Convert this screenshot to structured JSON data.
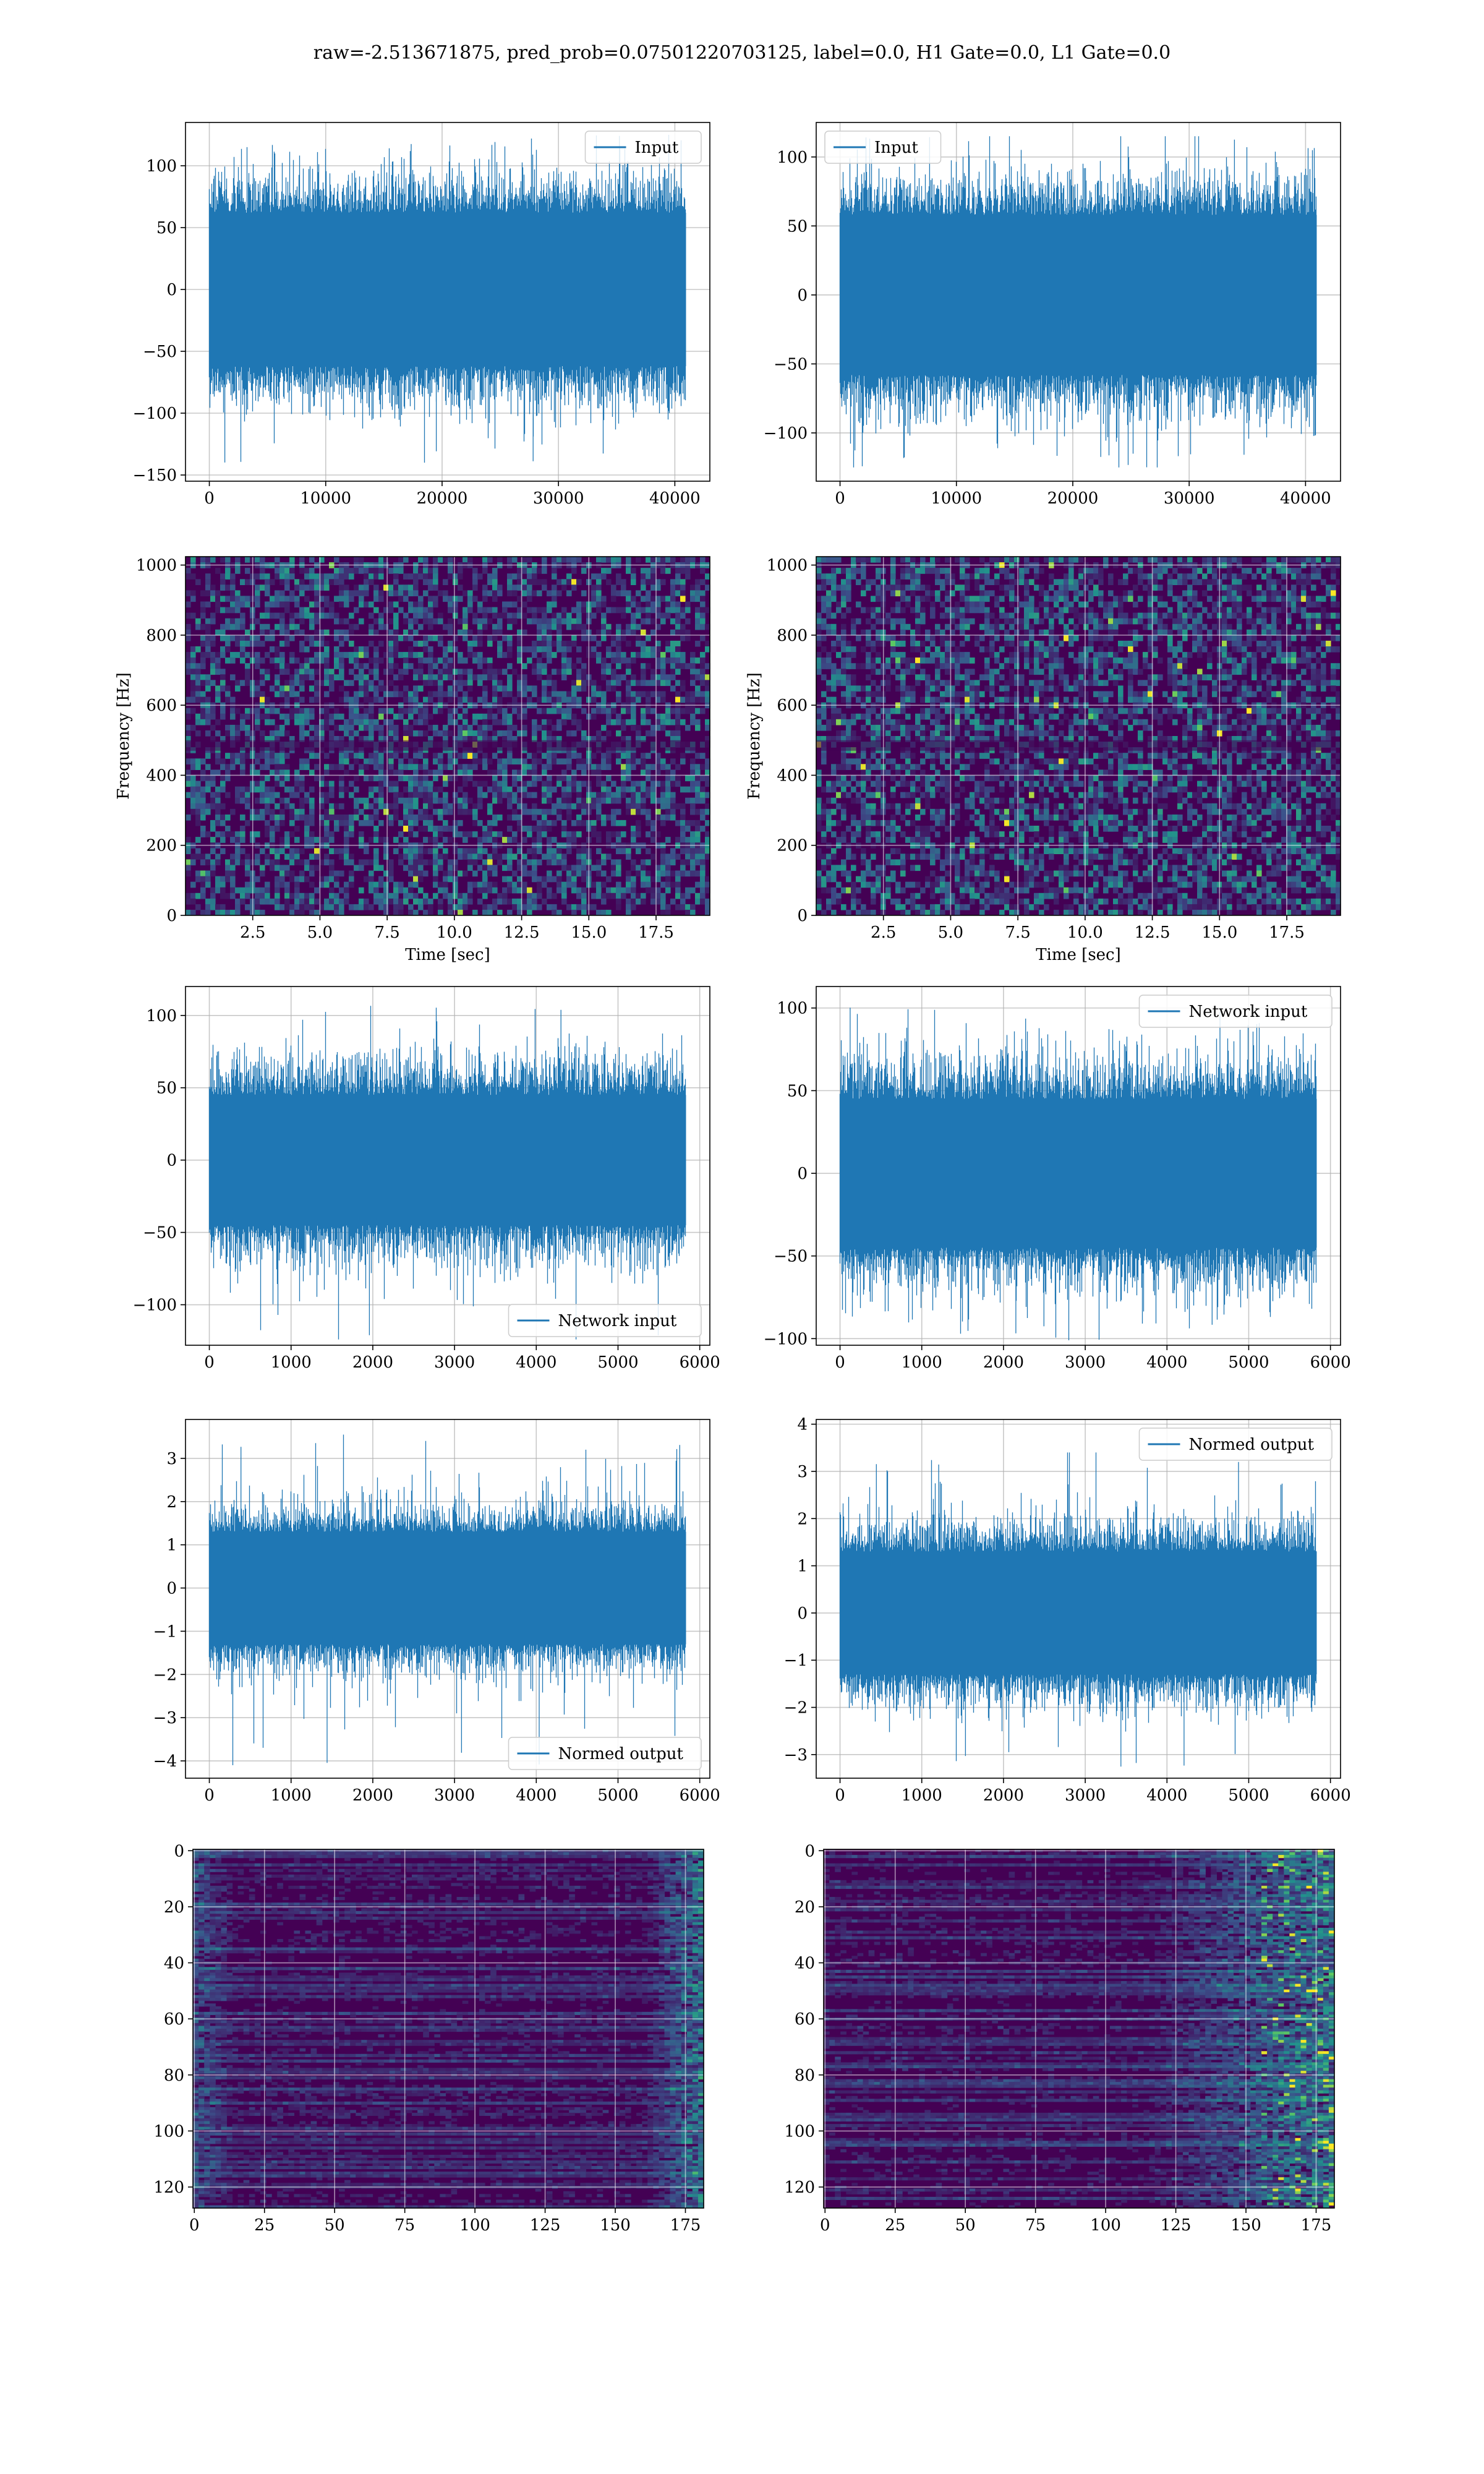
{
  "figure": {
    "title": "raw=-2.513671875, pred_prob=0.07501220703125, label=0.0, H1 Gate=0.0, L1 Gate=0.0"
  },
  "colors": {
    "line": "#1f77b4",
    "grid": "#b0b0b0",
    "viridis_dark": "#440154",
    "viridis_mid": "#21918c",
    "viridis_bright": "#fde725"
  },
  "chart_data": [
    {
      "id": "h1-input",
      "type": "line",
      "panel": "row1-left",
      "series": [
        {
          "name": "Input",
          "values_pattern": "dense gaussian noise, core amplitude ~60, peaks ~125, min ~-140",
          "n": 40960
        }
      ],
      "xlim": [
        -2048,
        43008
      ],
      "ylim": [
        -155,
        135
      ],
      "xticks": [
        0,
        10000,
        20000,
        30000,
        40000
      ],
      "yticks": [
        -150,
        -100,
        -50,
        0,
        50,
        100
      ],
      "legend": "top-right",
      "grid": true,
      "xlabel": "",
      "ylabel": ""
    },
    {
      "id": "l1-input",
      "type": "line",
      "panel": "row1-right",
      "series": [
        {
          "name": "Input",
          "values_pattern": "dense gaussian noise, core amplitude ~55, peaks ~115, min ~-125",
          "n": 40960
        }
      ],
      "xlim": [
        -2048,
        43008
      ],
      "ylim": [
        -135,
        125
      ],
      "xticks": [
        0,
        10000,
        20000,
        30000,
        40000
      ],
      "yticks": [
        -100,
        -50,
        0,
        50,
        100
      ],
      "legend": "top-left",
      "grid": true,
      "xlabel": "",
      "ylabel": ""
    },
    {
      "id": "h1-spectrogram",
      "type": "heatmap",
      "panel": "row2-left",
      "xlim": [
        0,
        19.5
      ],
      "ylim": [
        0,
        1024
      ],
      "xticks": [
        2.5,
        5.0,
        7.5,
        10.0,
        12.5,
        15.0,
        17.5
      ],
      "yticks": [
        0,
        200,
        400,
        600,
        800,
        1000
      ],
      "xlabel": "Time [sec]",
      "ylabel": "Frequency [Hz]",
      "colormap": "viridis",
      "grid": true,
      "values_pattern": "speckled low-amplitude noise"
    },
    {
      "id": "l1-spectrogram",
      "type": "heatmap",
      "panel": "row2-right",
      "xlim": [
        0,
        19.5
      ],
      "ylim": [
        0,
        1024
      ],
      "xticks": [
        2.5,
        5.0,
        7.5,
        10.0,
        12.5,
        15.0,
        17.5
      ],
      "yticks": [
        0,
        200,
        400,
        600,
        800,
        1000
      ],
      "xlabel": "Time [sec]",
      "ylabel": "Frequency [Hz]",
      "colormap": "viridis",
      "grid": true,
      "values_pattern": "speckled low-amplitude noise"
    },
    {
      "id": "h1-network-input",
      "type": "line",
      "panel": "row3-left",
      "series": [
        {
          "name": "Network input",
          "values_pattern": "gaussian noise, core amplitude ~45, peaks ~110, min ~-125",
          "n": 5832
        }
      ],
      "xlim": [
        -291.6,
        6123.6
      ],
      "ylim": [
        -128,
        120
      ],
      "xticks": [
        0,
        1000,
        2000,
        3000,
        4000,
        5000,
        6000
      ],
      "yticks": [
        -100,
        -50,
        0,
        50,
        100
      ],
      "legend": "bottom-right",
      "grid": true,
      "xlabel": "",
      "ylabel": ""
    },
    {
      "id": "l1-network-input",
      "type": "line",
      "panel": "row3-right",
      "series": [
        {
          "name": "Network input",
          "values_pattern": "gaussian noise, core amplitude ~45, peaks ~100, min ~-100",
          "n": 5832
        }
      ],
      "xlim": [
        -291.6,
        6123.6
      ],
      "ylim": [
        -104,
        113
      ],
      "xticks": [
        0,
        1000,
        2000,
        3000,
        4000,
        5000,
        6000
      ],
      "yticks": [
        -100,
        -50,
        0,
        50,
        100
      ],
      "legend": "top-right",
      "grid": true,
      "xlabel": "",
      "ylabel": ""
    },
    {
      "id": "h1-normed-output",
      "type": "line",
      "panel": "row4-left",
      "series": [
        {
          "name": "Normed output",
          "values_pattern": "gaussian noise, core amplitude ~1.2, peaks ~3.5, min ~-4.1",
          "n": 5832
        }
      ],
      "xlim": [
        -291.6,
        6123.6
      ],
      "ylim": [
        -4.4,
        3.9
      ],
      "xticks": [
        0,
        1000,
        2000,
        3000,
        4000,
        5000,
        6000
      ],
      "yticks": [
        -4,
        -3,
        -2,
        -1,
        0,
        1,
        2,
        3
      ],
      "legend": "bottom-right",
      "grid": true,
      "xlabel": "",
      "ylabel": ""
    },
    {
      "id": "l1-normed-output",
      "type": "line",
      "panel": "row4-right",
      "series": [
        {
          "name": "Normed output",
          "values_pattern": "gaussian noise, core amplitude ~1.2, peaks ~3.4, min ~-3.3",
          "n": 5832
        }
      ],
      "xlim": [
        -291.6,
        6123.6
      ],
      "ylim": [
        -3.5,
        4.1
      ],
      "xticks": [
        0,
        1000,
        2000,
        3000,
        4000,
        5000,
        6000
      ],
      "yticks": [
        -3,
        -2,
        -1,
        0,
        1,
        2,
        3,
        4
      ],
      "legend": "top-right",
      "grid": true,
      "xlabel": "",
      "ylabel": ""
    },
    {
      "id": "h1-feature-map",
      "type": "heatmap",
      "panel": "row5-left",
      "xlim": [
        -0.5,
        181.5
      ],
      "ylim": [
        127.5,
        -0.5
      ],
      "xticks": [
        0,
        25,
        50,
        75,
        100,
        125,
        150,
        175
      ],
      "yticks": [
        0,
        20,
        40,
        60,
        80,
        100,
        120
      ],
      "colormap": "viridis",
      "grid": true,
      "xlabel": "",
      "ylabel": "",
      "values_pattern": "horizontal banded rows, brighter near left edge (x<15) and right edge (x>160)"
    },
    {
      "id": "l1-feature-map",
      "type": "heatmap",
      "panel": "row5-right",
      "xlim": [
        -0.5,
        181.5
      ],
      "ylim": [
        127.5,
        -0.5
      ],
      "xticks": [
        0,
        25,
        50,
        75,
        100,
        125,
        150,
        175
      ],
      "yticks": [
        0,
        20,
        40,
        60,
        80,
        100,
        120
      ],
      "colormap": "viridis",
      "grid": true,
      "xlabel": "",
      "ylabel": "",
      "values_pattern": "horizontal banded rows, brighter toward right side (x>120), bright spots near x~160-175"
    }
  ]
}
